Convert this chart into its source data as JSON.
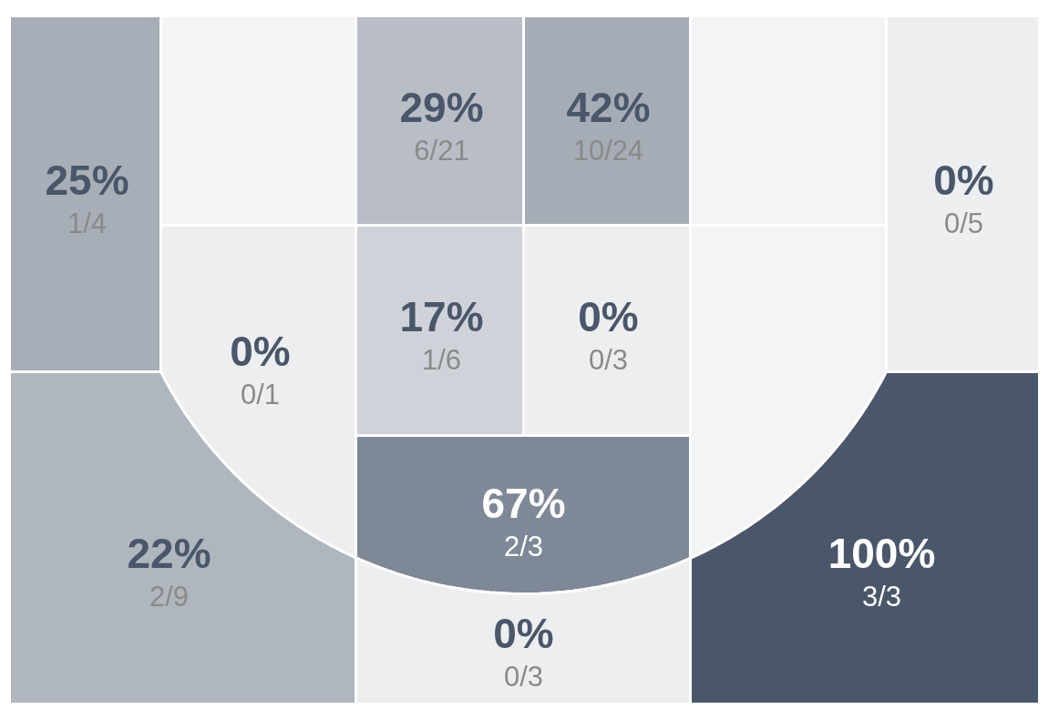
{
  "chart_data": {
    "type": "other",
    "categories": [
      "1/4",
      null,
      "6/21",
      "10/24",
      null,
      "0/5",
      "0/1",
      "1/6",
      "0/3",
      null,
      "2/3",
      "2/9",
      "0/3",
      "3/3"
    ],
    "values": [
      25,
      null,
      29,
      42,
      null,
      0,
      0,
      17,
      0,
      null,
      67,
      22,
      0,
      100
    ],
    "value_labels": [
      "25%",
      null,
      "29%",
      "42%",
      null,
      "0%",
      "0%",
      "17%",
      "0%",
      null,
      "67%",
      "22%",
      "0%",
      "100%"
    ],
    "colors": [
      "#a8aeb7",
      "#f3f4f6",
      "#b9bec6",
      "#a6acb5",
      "#f3f4f6",
      "#eceef0",
      "#eceef0",
      "#cfd3d9",
      "#eceef0",
      "#f3f4f6",
      "#7f8896",
      "#b0b6be",
      "#eceef0",
      "#4a5669"
    ]
  }
}
